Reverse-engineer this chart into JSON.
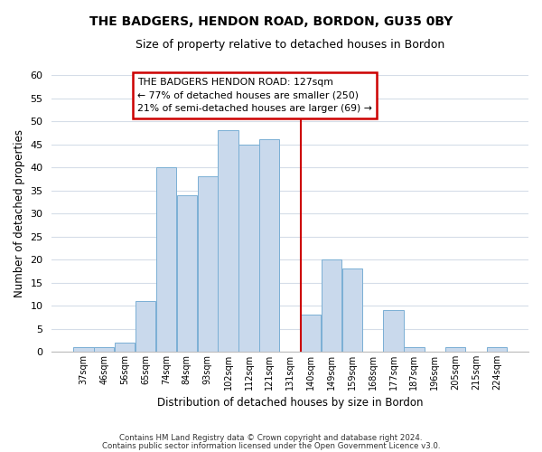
{
  "title": "THE BADGERS, HENDON ROAD, BORDON, GU35 0BY",
  "subtitle": "Size of property relative to detached houses in Bordon",
  "xlabel": "Distribution of detached houses by size in Bordon",
  "ylabel": "Number of detached properties",
  "bar_labels": [
    "37sqm",
    "46sqm",
    "56sqm",
    "65sqm",
    "74sqm",
    "84sqm",
    "93sqm",
    "102sqm",
    "112sqm",
    "121sqm",
    "131sqm",
    "140sqm",
    "149sqm",
    "159sqm",
    "168sqm",
    "177sqm",
    "187sqm",
    "196sqm",
    "205sqm",
    "215sqm",
    "224sqm"
  ],
  "bar_values": [
    1,
    1,
    2,
    11,
    40,
    34,
    38,
    48,
    45,
    46,
    0,
    8,
    20,
    18,
    0,
    9,
    1,
    0,
    1,
    0,
    1
  ],
  "bar_color": "#c9d9ec",
  "bar_edge_color": "#7aafd4",
  "vline_x_index": 10.5,
  "vline_color": "#cc0000",
  "annotation_title": "THE BADGERS HENDON ROAD: 127sqm",
  "annotation_line1": "← 77% of detached houses are smaller (250)",
  "annotation_line2": "21% of semi-detached houses are larger (69) →",
  "annotation_box_color": "#ffffff",
  "annotation_box_edge": "#cc0000",
  "ylim": [
    0,
    60
  ],
  "yticks": [
    0,
    5,
    10,
    15,
    20,
    25,
    30,
    35,
    40,
    45,
    50,
    55,
    60
  ],
  "grid_color": "#d5dde8",
  "footnote1": "Contains HM Land Registry data © Crown copyright and database right 2024.",
  "footnote2": "Contains public sector information licensed under the Open Government Licence v3.0.",
  "bg_color": "#ffffff"
}
